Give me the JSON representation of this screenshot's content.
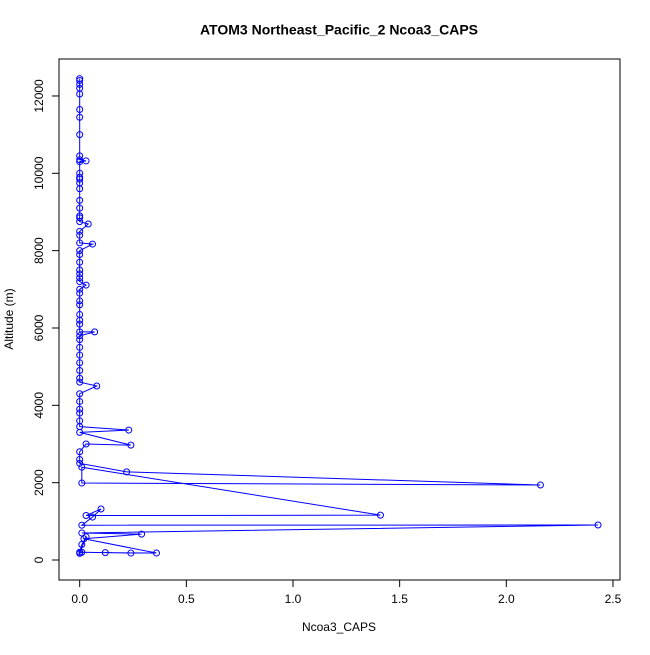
{
  "chart_data": {
    "type": "line",
    "title": "ATOM3 Northeast_Pacific_2 Ncoa3_CAPS",
    "x_label": "Ncoa3_CAPS",
    "y_label": "Altitude (m)",
    "color": "#0000ff",
    "x": [
      0,
      0,
      0,
      0,
      0,
      0,
      0,
      0,
      0,
      0,
      0.03,
      0,
      0,
      0,
      0,
      0,
      0,
      0,
      0,
      0,
      0,
      0,
      0.04,
      0,
      0,
      0,
      0.06,
      0,
      0,
      0,
      0,
      0,
      0,
      0,
      0.03,
      0,
      0,
      0,
      0,
      0,
      0,
      0,
      0,
      0.07,
      0,
      0,
      0,
      0,
      0,
      0,
      0,
      0,
      0.08,
      0,
      0,
      0,
      0,
      0,
      0,
      0.23,
      0,
      0.24,
      0.03,
      0,
      0,
      0,
      0.22,
      2.16,
      0.01,
      0.01,
      1.41,
      0.03,
      0.1,
      0.06,
      0.01,
      2.43,
      0.01,
      0.29,
      0.02,
      0.36,
      0.12,
      0.24,
      0.01,
      0,
      0.03,
      0.01,
      0
    ],
    "values": [
      12450,
      12400,
      12300,
      12200,
      12050,
      11650,
      11450,
      11000,
      10450,
      10350,
      10320,
      10300,
      10000,
      9900,
      9850,
      9750,
      9600,
      9300,
      9100,
      8900,
      8850,
      8750,
      8690,
      8500,
      8400,
      8200,
      8170,
      8000,
      7900,
      7700,
      7500,
      7400,
      7300,
      7200,
      7110,
      7000,
      6900,
      6700,
      6600,
      6350,
      6200,
      6100,
      5900,
      5900,
      5800,
      5700,
      5500,
      5300,
      5100,
      4900,
      4700,
      4600,
      4500,
      4300,
      4100,
      3900,
      3800,
      3600,
      3450,
      3360,
      3300,
      2970,
      3000,
      2800,
      2600,
      2500,
      2280,
      1940,
      1990,
      2400,
      1160,
      1150,
      1320,
      1110,
      900,
      905,
      700,
      670,
      550,
      180,
      190,
      180,
      200,
      170,
      600,
      400,
      200
    ],
    "xlim": [
      -0.097,
      2.533
    ],
    "ylim": [
      -517,
      12956
    ],
    "xticks": [
      {
        "value": 0,
        "label": "0.0"
      },
      0.5,
      {
        "value": 1,
        "label": "1.0"
      },
      1.5,
      {
        "value": 2,
        "label": "2.0"
      },
      2.5
    ],
    "yticks": [
      0,
      2000,
      4000,
      6000,
      8000,
      10000,
      12000
    ]
  }
}
